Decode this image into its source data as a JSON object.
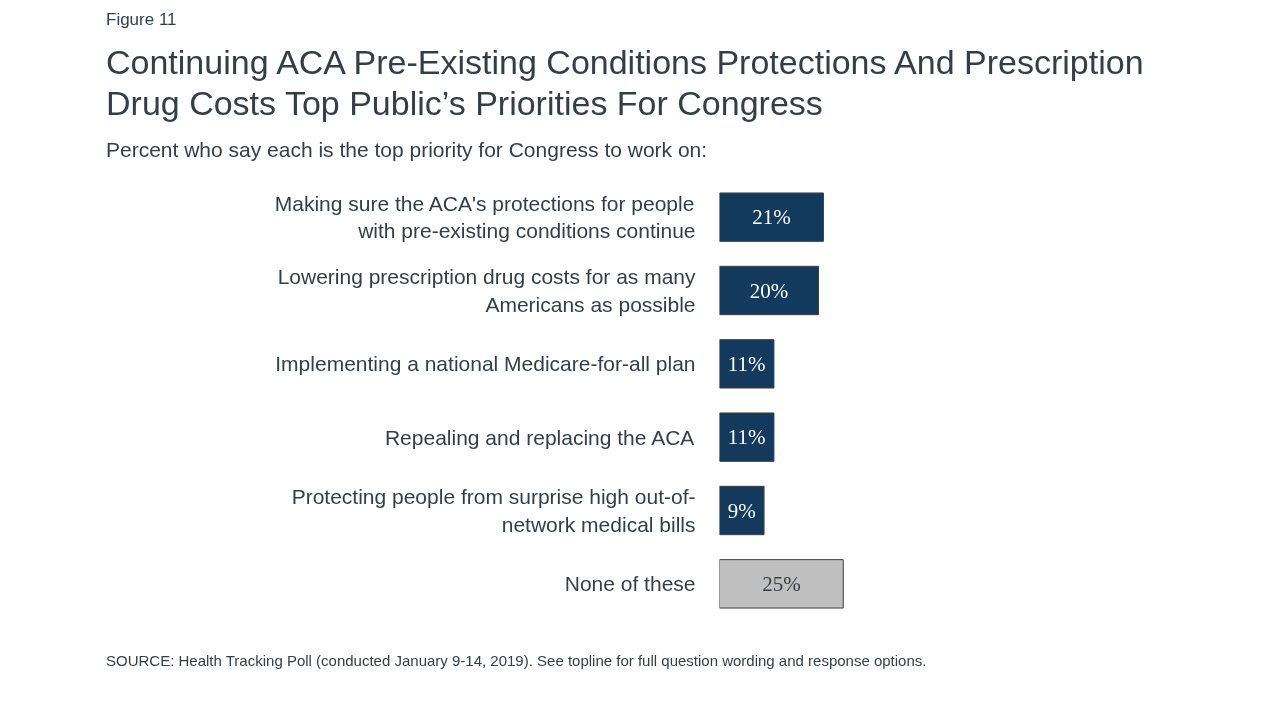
{
  "chart_data": {
    "type": "bar",
    "orientation": "horizontal",
    "title": "Continuing ACA Pre-Existing Conditions Protections And Prescription Drug Costs Top Public’s Priorities For Congress",
    "subtitle": "Percent who say each is the top priority for Congress to work on:",
    "categories": [
      "Making sure the ACA's protections for people with pre-existing conditions continue",
      "Lowering prescription drug costs for as many Americans as possible",
      "Implementing a national Medicare-for-all plan",
      "Repealing and replacing the ACA",
      "Protecting people from surprise high out-of-network medical bills",
      "None of these"
    ],
    "values": [
      21,
      20,
      11,
      11,
      9,
      25
    ],
    "colors": [
      "#133a5c",
      "#133a5c",
      "#133a5c",
      "#133a5c",
      "#133a5c",
      "#bfbfbf"
    ],
    "value_labels": [
      "21%",
      "20%",
      "11%",
      "11%",
      "9%",
      "25%"
    ],
    "annotations": [
      "Figure 11",
      "SOURCE: Health Tracking Poll (conducted January 9-14, 2019). See topline for full question wording and response options."
    ]
  }
}
